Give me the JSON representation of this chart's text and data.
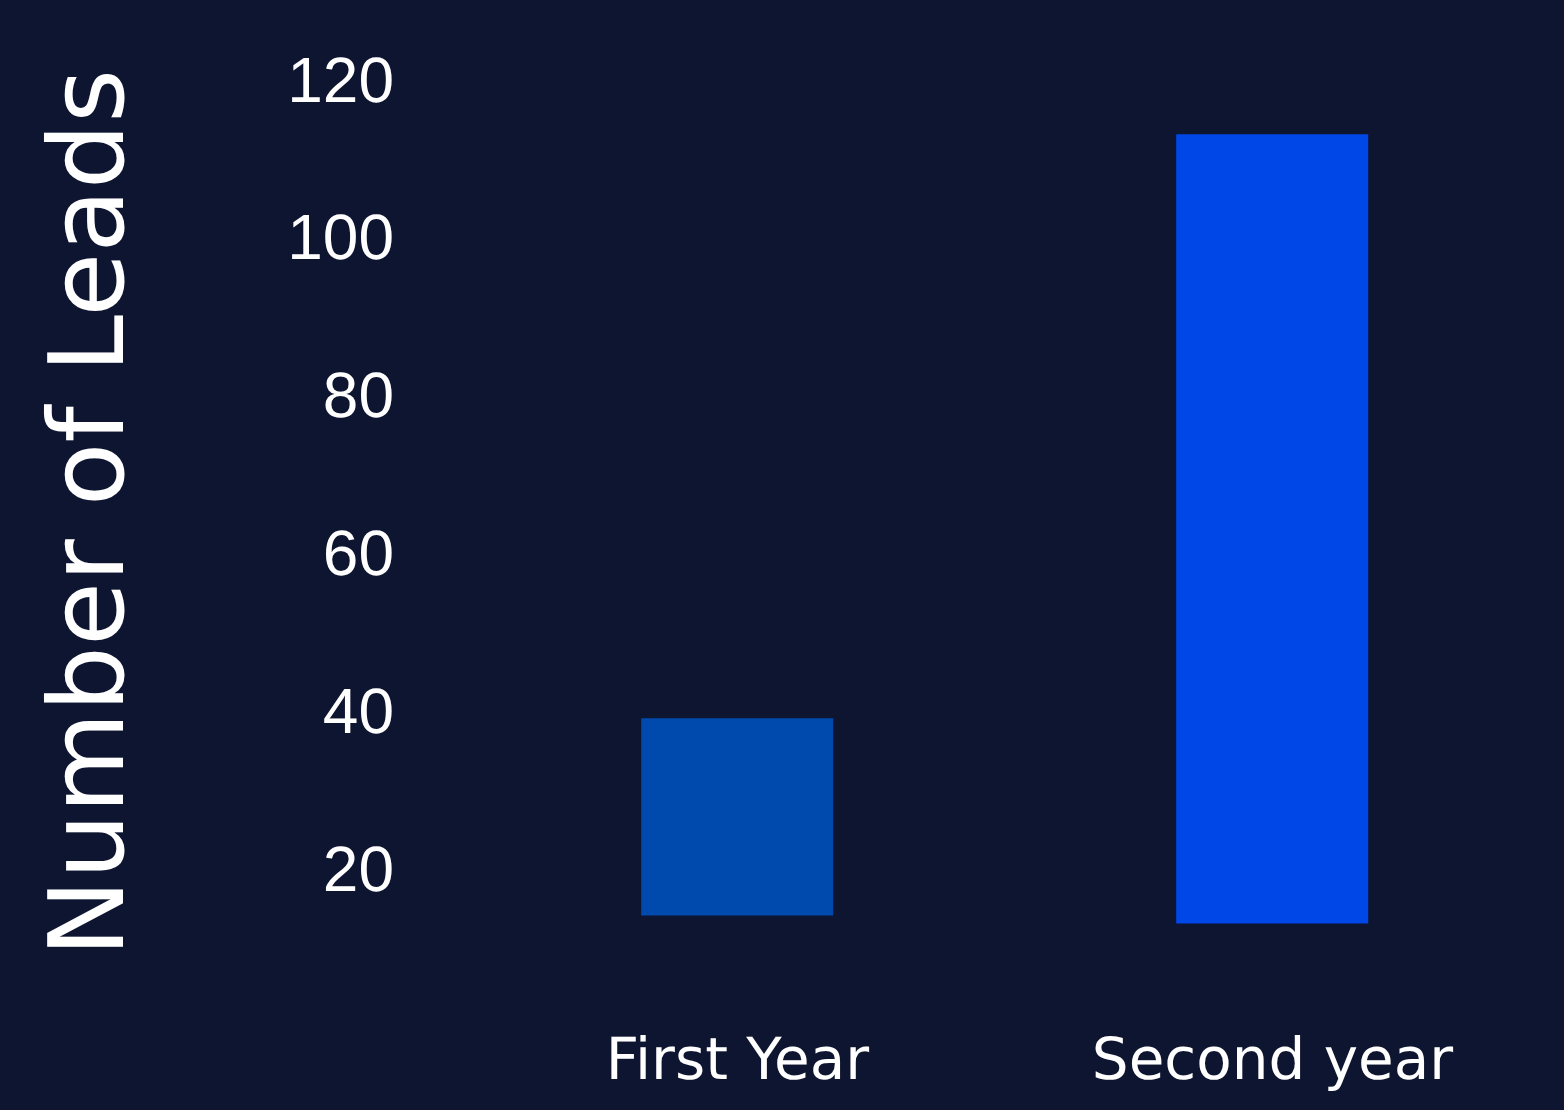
{
  "chart_data": {
    "type": "bar",
    "ylabel": "Number of Leads",
    "categories": [
      "First Year",
      "Second year"
    ],
    "values": [
      25,
      100
    ],
    "base": [
      14,
      13
    ],
    "colors": [
      "#004aad",
      "#0047e8"
    ],
    "ylim": [
      0,
      130
    ],
    "yticks": [
      20,
      40,
      60,
      80,
      100,
      120
    ],
    "grid": false,
    "legend": false
  }
}
